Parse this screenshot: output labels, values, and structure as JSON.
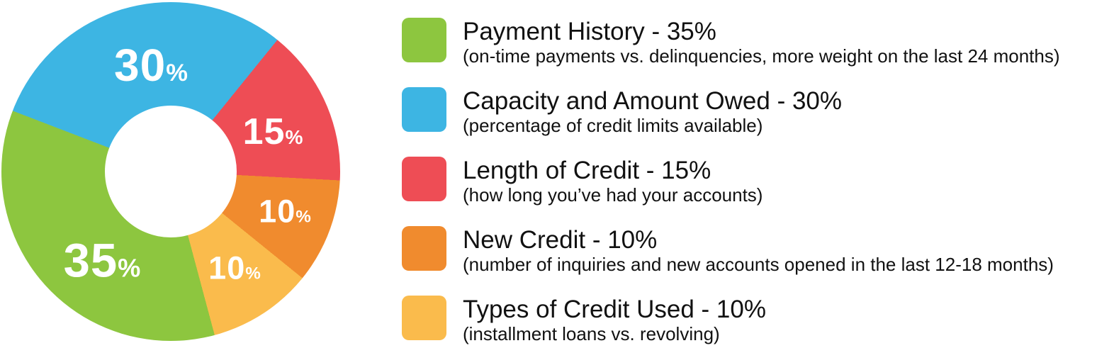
{
  "chart_data": {
    "type": "pie",
    "variant": "donut",
    "background": "#ffffff",
    "inner_hole_color": "#ffffff",
    "inner_radius_ratio": 0.39,
    "legend_position": "right",
    "labels_on_slices": true,
    "percent_sign": "%",
    "start_angle_css": "-69deg",
    "draw_order": [
      1,
      2,
      3,
      4,
      0
    ],
    "series": [
      {
        "name": "Payment History",
        "value": 35,
        "color": "#8dc63f",
        "legend_title": "Payment History - 35%",
        "description": "(on-time payments vs. delinquencies, more weight on the last 24 months)"
      },
      {
        "name": "Capacity and Amount Owed",
        "value": 30,
        "color": "#3db5e3",
        "legend_title": "Capacity and Amount Owed - 30%",
        "description": "(percentage of credit limits available)"
      },
      {
        "name": "Length of Credit",
        "value": 15,
        "color": "#ee4d55",
        "legend_title": "Length of Credit - 15%",
        "description": "(how long you’ve had your accounts)"
      },
      {
        "name": "New Credit",
        "value": 10,
        "color": "#f08b2e",
        "legend_title": "New Credit - 10%",
        "description": "(number of inquiries and new accounts opened in the last 12-18 months)"
      },
      {
        "name": "Types of Credit Used",
        "value": 10,
        "color": "#fabb4c",
        "legend_title": "Types of Credit Used - 10%",
        "description": "(installment loans vs. revolving)"
      }
    ],
    "slice_labels": [
      {
        "text": "30",
        "series_index": 1
      },
      {
        "text": "15",
        "series_index": 2
      },
      {
        "text": "10",
        "series_index": 3
      },
      {
        "text": "10",
        "series_index": 4
      },
      {
        "text": "35",
        "series_index": 0
      }
    ]
  }
}
